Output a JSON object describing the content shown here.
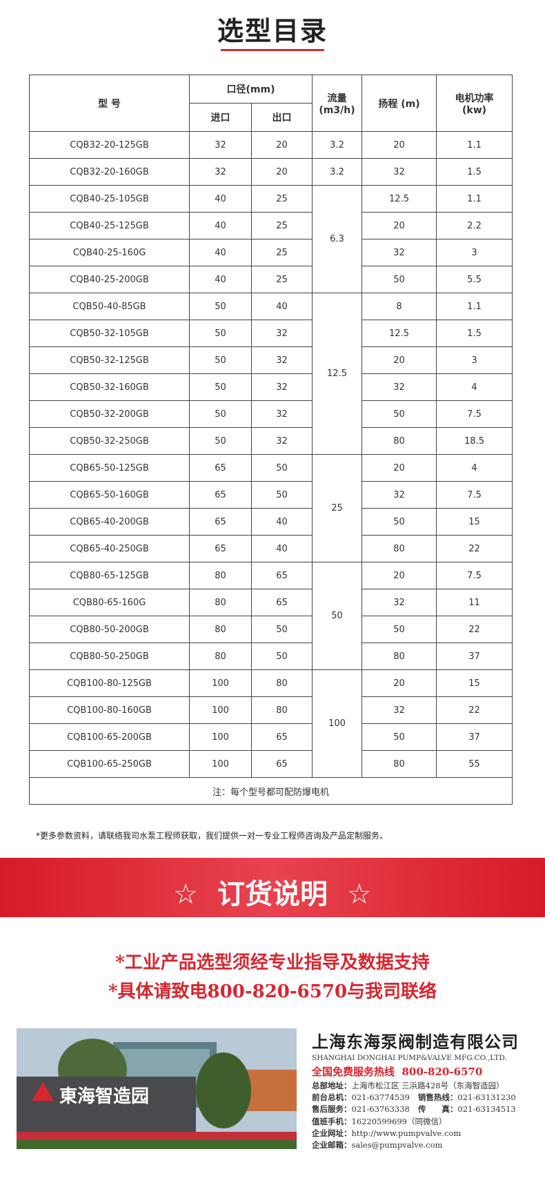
{
  "header": {
    "title": "选型目录"
  },
  "table": {
    "head": {
      "model": "型 号",
      "caliber": "口径(mm)",
      "inlet": "进口",
      "outlet": "出口",
      "flow": [
        "流量",
        "(m3/h)"
      ],
      "head": "扬程 (m)",
      "power": [
        "电机功率",
        "(kw)"
      ]
    },
    "groups": [
      {
        "flow": "3.2",
        "rows": [
          [
            "CQB32-20-125GB",
            "32",
            "20",
            "20",
            "1.1"
          ]
        ]
      },
      {
        "flow": "3.2",
        "rows": [
          [
            "CQB32-20-160GB",
            "32",
            "20",
            "32",
            "1.5"
          ]
        ]
      },
      {
        "flow": "6.3",
        "rows": [
          [
            "CQB40-25-105GB",
            "40",
            "25",
            "12.5",
            "1.1"
          ],
          [
            "CQB40-25-125GB",
            "40",
            "25",
            "20",
            "2.2"
          ],
          [
            "CQB40-25-160G",
            "40",
            "25",
            "32",
            "3"
          ],
          [
            "CQB40-25-200GB",
            "40",
            "25",
            "50",
            "5.5"
          ]
        ]
      },
      {
        "flow": "12.5",
        "rows": [
          [
            "CQB50-40-85GB",
            "50",
            "40",
            "8",
            "1.1"
          ],
          [
            "CQB50-32-105GB",
            "50",
            "32",
            "12.5",
            "1.5"
          ],
          [
            "CQB50-32-125GB",
            "50",
            "32",
            "20",
            "3"
          ],
          [
            "CQB50-32-160GB",
            "50",
            "32",
            "32",
            "4"
          ],
          [
            "CQB50-32-200GB",
            "50",
            "32",
            "50",
            "7.5"
          ],
          [
            "CQB50-32-250GB",
            "50",
            "32",
            "80",
            "18.5"
          ]
        ]
      },
      {
        "flow": "25",
        "rows": [
          [
            "CQB65-50-125GB",
            "65",
            "50",
            "20",
            "4"
          ],
          [
            "CQB65-50-160GB",
            "65",
            "50",
            "32",
            "7.5"
          ],
          [
            "CQB65-40-200GB",
            "65",
            "40",
            "50",
            "15"
          ],
          [
            "CQB65-40-250GB",
            "65",
            "40",
            "80",
            "22"
          ]
        ]
      },
      {
        "flow": "50",
        "rows": [
          [
            "CQB80-65-125GB",
            "80",
            "65",
            "20",
            "7.5"
          ],
          [
            "CQB80-65-160G",
            "80",
            "65",
            "32",
            "11"
          ],
          [
            "CQB80-50-200GB",
            "80",
            "50",
            "50",
            "22"
          ],
          [
            "CQB80-50-250GB",
            "80",
            "50",
            "80",
            "37"
          ]
        ]
      },
      {
        "flow": "100",
        "rows": [
          [
            "CQB100-80-125GB",
            "100",
            "80",
            "20",
            "15"
          ],
          [
            "CQB100-80-160GB",
            "100",
            "80",
            "32",
            "22"
          ],
          [
            "CQB100-65-200GB",
            "100",
            "65",
            "50",
            "37"
          ],
          [
            "CQB100-65-250GB",
            "100",
            "65",
            "80",
            "55"
          ]
        ]
      }
    ],
    "note": "注：每个型号都可配防爆电机"
  },
  "footnote": "*更多参数资料，请联络我司水泵工程师获取，我们提供一对一专业工程师咨询及产品定制服务。",
  "banner": {
    "star": "☆",
    "title": "订货说明"
  },
  "order_notes": [
    "*工业产品选型须经专业指导及数据支持",
    "*具体请致电800-820-6570与我司联络"
  ],
  "company": {
    "sign": "東海智造园",
    "name": "上海东海泵阀制造有限公司",
    "name_en": "SHANGHAI DONGHAI PUMP&VALVE MFG.CO.,LTD.",
    "hotline_label": "全国免费服务热线",
    "hotline": "800-820-6570",
    "contacts": [
      [
        [
          "总部地址：",
          "上海市松江区 三浜路428号（东海智造园）"
        ]
      ],
      [
        [
          "前台总机：",
          "021-63774539"
        ],
        [
          "销售热线：",
          "021-63131230"
        ]
      ],
      [
        [
          "售后服务：",
          "021-63763338"
        ],
        [
          "传　　真：",
          "021-63134513"
        ]
      ],
      [
        [
          "值班手机：",
          "16220599699（同微信）"
        ]
      ],
      [
        [
          "企业网址：",
          "http://www.pumpvalve.com"
        ]
      ],
      [
        [
          "企业邮箱：",
          "sales@pumpvalve.com"
        ]
      ]
    ]
  }
}
